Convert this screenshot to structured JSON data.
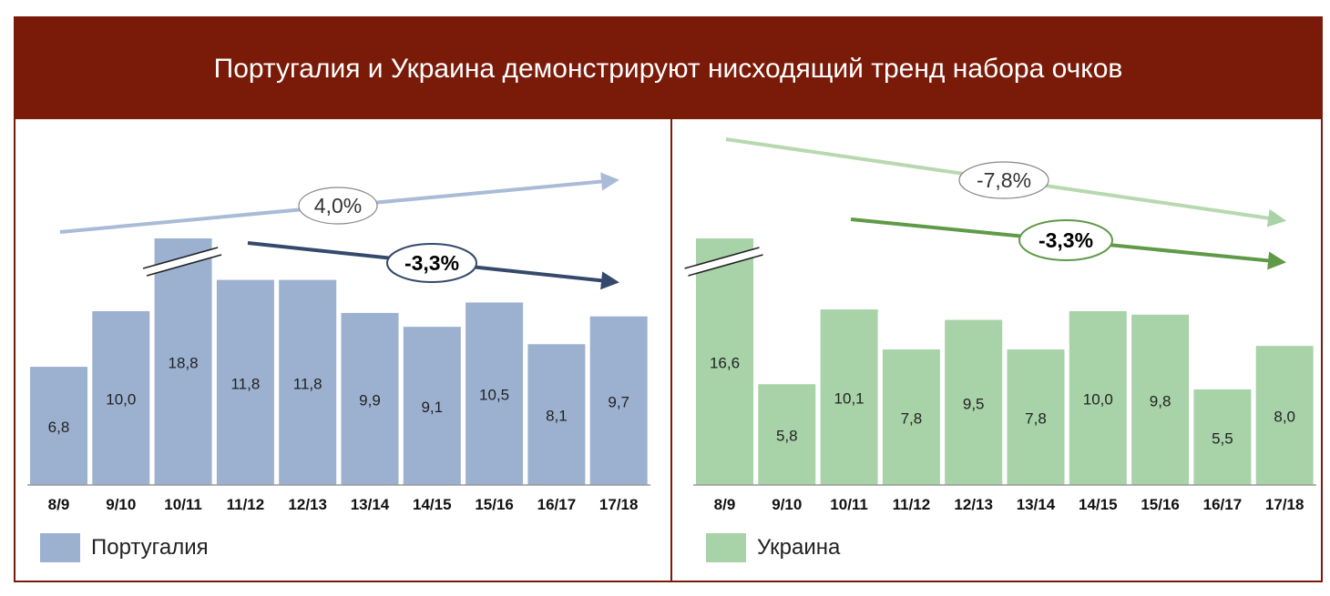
{
  "title": "Португалия и Украина демонстрируют нисходящий тренд набора очков",
  "colors": {
    "header_bg": "#7a1a08",
    "portugal_bar": "#9cb0d0",
    "portugal_trend_long": "#a9bbd6",
    "portugal_trend_short": "#34496b",
    "ukraine_bar": "#a8d2a8",
    "ukraine_trend_long": "#a8d2a8",
    "ukraine_trend_short": "#5e9a48"
  },
  "chart_data": [
    {
      "type": "bar",
      "categories": [
        "8/9",
        "9/10",
        "10/11",
        "11/12",
        "12/13",
        "13/14",
        "14/15",
        "15/16",
        "16/17",
        "17/18"
      ],
      "series": [
        {
          "name": "Португалия",
          "values": [
            6.8,
            10.0,
            18.8,
            11.8,
            11.8,
            9.9,
            9.1,
            10.5,
            8.1,
            9.7
          ]
        }
      ],
      "value_labels": [
        "6,8",
        "10,0",
        "18,8",
        "11,8",
        "11,8",
        "9,9",
        "9,1",
        "10,5",
        "8,1",
        "9,7"
      ],
      "broken_axis_category": "10/11",
      "trends": [
        {
          "label": "4,0%",
          "from": "8/9",
          "to": "17/18",
          "bold": false
        },
        {
          "label": "-3,3%",
          "from": "11/12",
          "to": "17/18",
          "bold": true
        }
      ],
      "legend": "Португалия",
      "legend_position": "bottom-left"
    },
    {
      "type": "bar",
      "categories": [
        "8/9",
        "9/10",
        "10/11",
        "11/12",
        "12/13",
        "13/14",
        "14/15",
        "15/16",
        "16/17",
        "17/18"
      ],
      "series": [
        {
          "name": "Украина",
          "values": [
            16.6,
            5.8,
            10.1,
            7.8,
            9.5,
            7.8,
            10.0,
            9.8,
            5.5,
            8.0
          ]
        }
      ],
      "value_labels": [
        "16,6",
        "5,8",
        "10,1",
        "7,8",
        "9,5",
        "7,8",
        "10,0",
        "9,8",
        "5,5",
        "8,0"
      ],
      "broken_axis_category": "8/9",
      "trends": [
        {
          "label": "-7,8%",
          "from": "8/9",
          "to": "17/18",
          "bold": false
        },
        {
          "label": "-3,3%",
          "from": "10/11",
          "to": "17/18",
          "bold": true
        }
      ],
      "legend": "Украина",
      "legend_position": "bottom-left"
    }
  ]
}
